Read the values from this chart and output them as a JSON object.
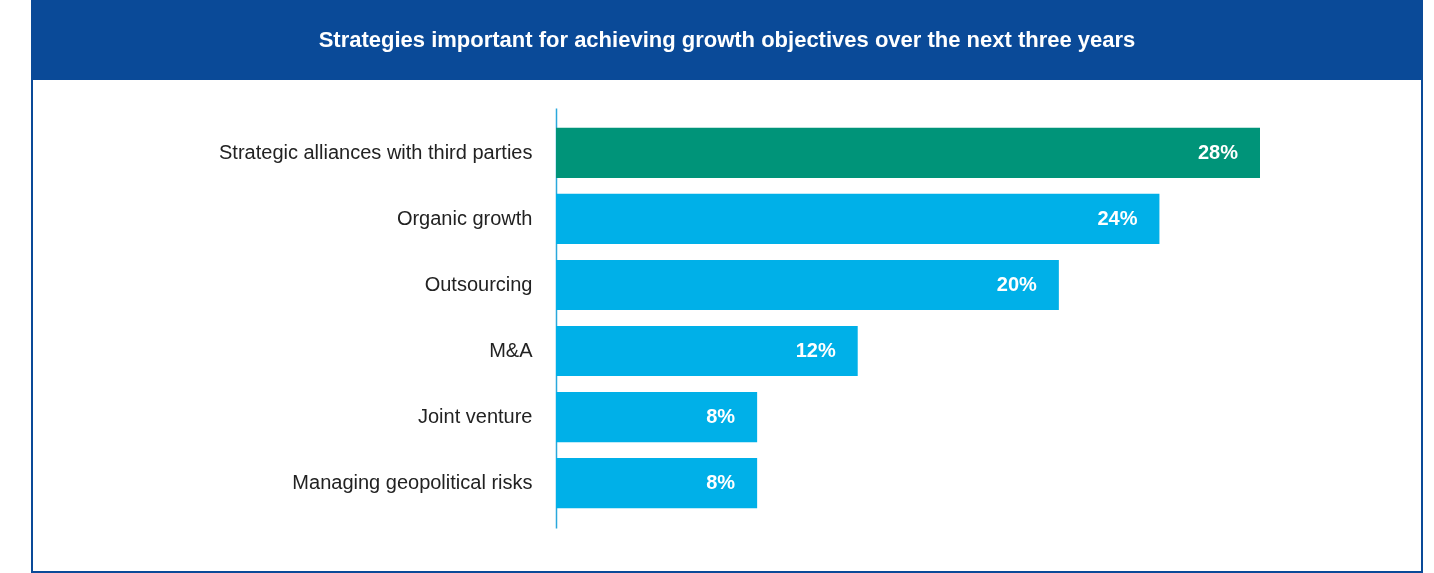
{
  "chart_data": {
    "type": "bar",
    "orientation": "horizontal",
    "title": "Strategies important for achieving growth objectives over the next three years",
    "categories": [
      "Strategic alliances with third parties",
      "Organic growth",
      "Outsourcing",
      "M&A",
      "Joint venture",
      "Managing  geopolitical risks"
    ],
    "values": [
      28,
      24,
      20,
      12,
      8,
      8
    ],
    "value_labels": [
      "28%",
      "24%",
      "20%",
      "12%",
      "8%",
      "8%"
    ],
    "colors": [
      "#009479",
      "#00b0e8",
      "#00b0e8",
      "#00b0e8",
      "#00b0e8",
      "#00b0e8"
    ]
  }
}
